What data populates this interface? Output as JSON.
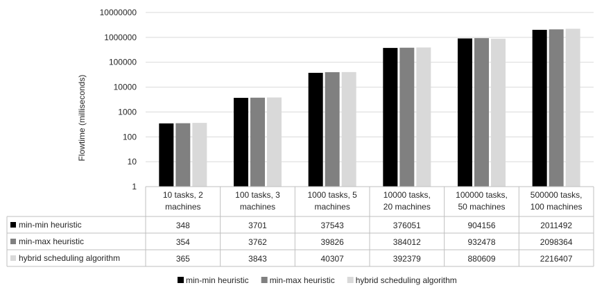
{
  "chart_data": {
    "type": "bar",
    "ylabel": "Flowtime (milliseconds)",
    "yscale": "log",
    "ylim": [
      1,
      10000000
    ],
    "yticks": [
      "1",
      "10",
      "100",
      "1000",
      "10000",
      "100000",
      "1000000",
      "10000000"
    ],
    "grid": true,
    "legend_position": "bottom",
    "categories": [
      [
        "10 tasks, 2",
        "machines"
      ],
      [
        "100 tasks, 3",
        "machines"
      ],
      [
        "1000 tasks, 5",
        "machines"
      ],
      [
        "10000 tasks,",
        "20 machines"
      ],
      [
        "100000 tasks,",
        "50 machines"
      ],
      [
        "500000 tasks,",
        "100 machines"
      ]
    ],
    "series": [
      {
        "name": "min-min heuristic",
        "color": "#000000",
        "values": [
          348,
          3701,
          37543,
          376051,
          904156,
          2011492
        ]
      },
      {
        "name": "min-max heuristic",
        "color": "#808080",
        "values": [
          354,
          3762,
          39826,
          384012,
          932478,
          2098364
        ]
      },
      {
        "name": "hybrid scheduling algorithm",
        "color": "#d9d9d9",
        "values": [
          365,
          3843,
          40307,
          392379,
          880609,
          2216407
        ]
      }
    ],
    "data_table": true
  }
}
